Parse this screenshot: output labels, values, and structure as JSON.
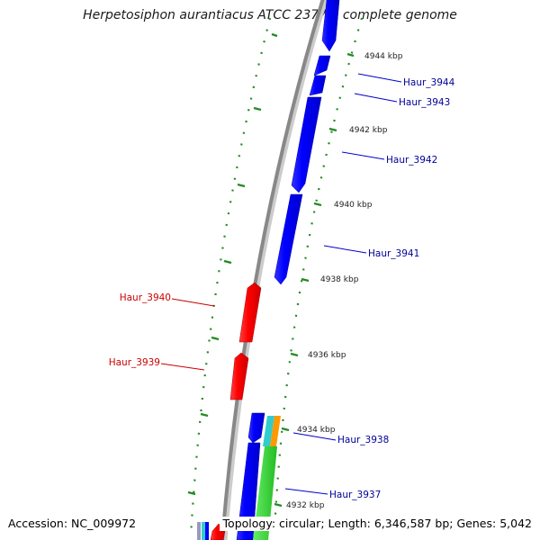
{
  "title": "Herpetosiphon aurantiacus ATCC 23779, complete genome",
  "footer": {
    "accession_label": "Accession:",
    "accession": "NC_009972",
    "topology_label": "Topology:",
    "topology": "circular",
    "length_label": "Length:",
    "length": "6,346,587 bp",
    "genes_label": "Genes:",
    "genes": "5,042"
  },
  "kbp_labels": [
    "4944 kbp",
    "4942 kbp",
    "4940 kbp",
    "4938 kbp",
    "4936 kbp",
    "4934 kbp",
    "4932 kbp"
  ],
  "genes": [
    {
      "id": "Haur_3944",
      "strand": "forward",
      "color": "#0000ff"
    },
    {
      "id": "Haur_3943",
      "strand": "forward",
      "color": "#0000ff"
    },
    {
      "id": "Haur_3942",
      "strand": "forward",
      "color": "#0000ff"
    },
    {
      "id": "Haur_3941",
      "strand": "forward",
      "color": "#0000ff"
    },
    {
      "id": "Haur_3940",
      "strand": "reverse",
      "color": "#ff0000"
    },
    {
      "id": "Haur_3939",
      "strand": "reverse",
      "color": "#ff0000"
    },
    {
      "id": "Haur_3938",
      "strand": "forward",
      "color": "#0000ff"
    },
    {
      "id": "Haur_3937",
      "strand": "forward",
      "color": "#0000ff"
    }
  ],
  "colors": {
    "forward_gene": "#0000ff",
    "reverse_gene": "#ff0000",
    "feature_green": "#33cc33",
    "feature_cyan": "#33cccc",
    "feature_orange": "#ff9900",
    "backbone": "#888888",
    "tick": "#228b22",
    "forward_label": "#000099",
    "reverse_label": "#cc0000"
  }
}
